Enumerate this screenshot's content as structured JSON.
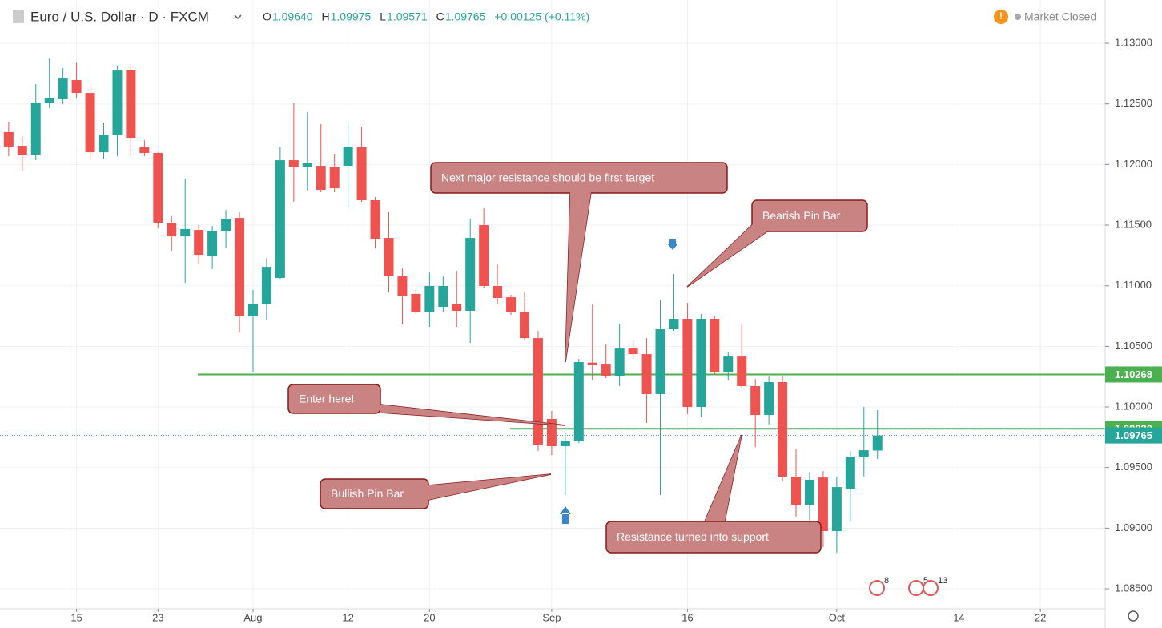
{
  "chart_data": {
    "type": "candlestick",
    "title": "Euro / U.S. Dollar · D · FXCM",
    "ohlc_legend": [
      {
        "key": "O",
        "value": "1.09640"
      },
      {
        "key": "H",
        "value": "1.09975"
      },
      {
        "key": "L",
        "value": "1.09571"
      },
      {
        "key": "C",
        "value": "1.09765"
      }
    ],
    "change": "+0.00125 (+0.11%)",
    "status": "Market Closed",
    "up_color": "#26a69a",
    "down_color": "#ef5350",
    "open": [
      1.12267,
      1.12154,
      1.12081,
      1.12511,
      1.12544,
      1.12696,
      1.1259,
      1.12101,
      1.12247,
      1.12782,
      1.12141,
      1.12095,
      1.1152,
      1.11407,
      1.1146,
      1.11242,
      1.11454,
      1.11559,
      1.10747,
      1.10852,
      1.11064,
      1.12035,
      1.11982,
      1.11989,
      1.11982,
      1.11989,
      1.12141,
      1.11705,
      1.11394,
      1.11077,
      1.10932,
      1.1078,
      1.10826,
      1.10852,
      1.10793,
      1.115,
      1.10998,
      1.10905,
      1.1078,
      1.10568,
      1.09901,
      1.09676,
      1.09716,
      1.10366,
      1.1035,
      1.10258,
      1.10482,
      1.10436,
      1.10106,
      1.10641,
      1.10727,
      1.1,
      1.10727,
      1.10284,
      1.10416,
      1.10172,
      1.09934,
      1.10205,
      1.09425,
      1.09194,
      1.09418,
      1.08976,
      1.09326,
      1.0959,
      1.0964
    ],
    "high": [
      1.12352,
      1.12233,
      1.12663,
      1.12874,
      1.12795,
      1.12841,
      1.12643,
      1.12346,
      1.12815,
      1.12828,
      1.122,
      1.12101,
      1.11573,
      1.11883,
      1.11507,
      1.11493,
      1.11625,
      1.11606,
      1.10965,
      1.11229,
      1.12148,
      1.12511,
      1.12432,
      1.12333,
      1.12088,
      1.12333,
      1.12313,
      1.11731,
      1.11606,
      1.11143,
      1.10965,
      1.1111,
      1.11077,
      1.11123,
      1.11553,
      1.11639,
      1.11176,
      1.10925,
      1.10945,
      1.10628,
      1.09967,
      1.09788,
      1.10396,
      1.10846,
      1.10515,
      1.10687,
      1.10548,
      1.10568,
      1.10879,
      1.11097,
      1.10859,
      1.10767,
      1.10747,
      1.10449,
      1.10687,
      1.10231,
      1.10251,
      1.10251,
      1.09656,
      1.09458,
      1.09471,
      1.09425,
      1.09637,
      1.1,
      1.09975
    ],
    "low": [
      1.12068,
      1.11949,
      1.12035,
      1.12465,
      1.12498,
      1.12551,
      1.12035,
      1.12048,
      1.12068,
      1.12068,
      1.12068,
      1.11474,
      1.11288,
      1.11024,
      1.11176,
      1.11137,
      1.11308,
      1.10615,
      1.10284,
      1.10714,
      1.11057,
      1.11692,
      1.11784,
      1.11771,
      1.11771,
      1.11639,
      1.11692,
      1.11308,
      1.10945,
      1.10681,
      1.10767,
      1.10661,
      1.1078,
      1.10661,
      1.10529,
      1.10978,
      1.10846,
      1.1076,
      1.10548,
      1.09637,
      1.09603,
      1.09273,
      1.09703,
      1.10218,
      1.10238,
      1.10172,
      1.10396,
      1.09868,
      1.09273,
      1.10628,
      1.09941,
      1.09921,
      1.10264,
      1.10218,
      1.10152,
      1.09668,
      1.09855,
      1.09392,
      1.09095,
      1.09062,
      1.08844,
      1.08797,
      1.09055,
      1.09425,
      1.09571
    ],
    "close": [
      1.12148,
      1.12081,
      1.12511,
      1.12551,
      1.12709,
      1.1259,
      1.12101,
      1.12247,
      1.12775,
      1.1222,
      1.12095,
      1.1152,
      1.11407,
      1.11467,
      1.11255,
      1.11454,
      1.11553,
      1.10747,
      1.10852,
      1.11156,
      1.12035,
      1.11982,
      1.12009,
      1.11791,
      1.11804,
      1.12148,
      1.11705,
      1.11388,
      1.11077,
      1.10912,
      1.1078,
      1.10998,
      1.10998,
      1.10793,
      1.11394,
      1.10998,
      1.10899,
      1.1078,
      1.10568,
      1.09689,
      1.09676,
      1.09722,
      1.1037,
      1.10344,
      1.10258,
      1.10482,
      1.10436,
      1.10106,
      1.10641,
      1.10727,
      1.1,
      1.10727,
      1.10284,
      1.10416,
      1.10172,
      1.09934,
      1.10205,
      1.09425,
      1.09194,
      1.09399,
      1.08976,
      1.09339,
      1.0959,
      1.09643,
      1.09765
    ],
    "xlim": [
      -0.64,
      80.77
    ],
    "xticks": [
      {
        "value": 5,
        "label": "15"
      },
      {
        "value": 11,
        "label": "23"
      },
      {
        "value": 18,
        "label": "Aug"
      },
      {
        "value": 25,
        "label": "12"
      },
      {
        "value": 31,
        "label": "20"
      },
      {
        "value": 40,
        "label": "Sep"
      },
      {
        "value": 50,
        "label": "16"
      },
      {
        "value": 61,
        "label": "Oct"
      },
      {
        "value": 70,
        "label": "14"
      },
      {
        "value": 76,
        "label": "22"
      }
    ],
    "ylim": [
      1.08335,
      1.13357
    ],
    "yticks": [
      {
        "value": 1.13,
        "label": "1.13000"
      },
      {
        "value": 1.125,
        "label": "1.12500"
      },
      {
        "value": 1.12,
        "label": "1.12000"
      },
      {
        "value": 1.115,
        "label": "1.11500"
      },
      {
        "value": 1.11,
        "label": "1.11000"
      },
      {
        "value": 1.105,
        "label": "1.10500"
      },
      {
        "value": 1.1,
        "label": "1.10000"
      },
      {
        "value": 1.095,
        "label": "1.09500"
      },
      {
        "value": 1.09,
        "label": "1.09000"
      },
      {
        "value": 1.085,
        "label": "1.08500"
      }
    ],
    "grid": true,
    "hlines": [
      {
        "value": 1.10268,
        "label": "1.10268",
        "color": "#4caf50"
      },
      {
        "value": 1.0982,
        "label": "1.09820",
        "color": "#4caf50"
      }
    ],
    "last_price": {
      "value": 1.09765,
      "label": "1.09765",
      "color": "#26a69a"
    },
    "annotations": [
      {
        "text": "Next major resistance should be first target"
      },
      {
        "text": "Bearish Pin Bar"
      },
      {
        "text": "Enter here!"
      },
      {
        "text": "Bullish Pin Bar"
      },
      {
        "text": "Resistance turned into support"
      }
    ],
    "events": [
      "8",
      "5",
      "13"
    ]
  }
}
